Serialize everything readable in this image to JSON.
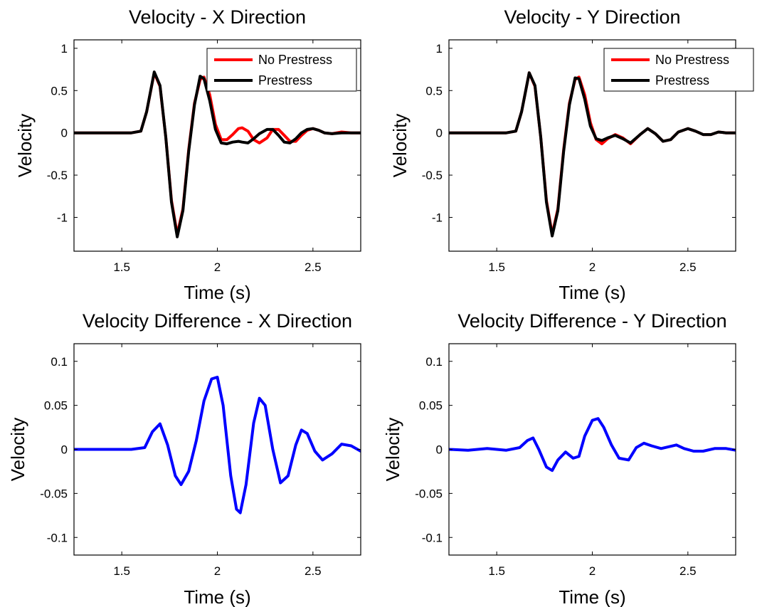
{
  "chart_data": [
    {
      "type": "line",
      "title": "Velocity - X Direction",
      "xlabel": "Time (s)",
      "ylabel": "Velocity",
      "xlim": [
        1.25,
        2.75
      ],
      "ylim": [
        -1.4,
        1.1
      ],
      "xticks": [
        "1.5",
        "2",
        "2.5"
      ],
      "yticks": [
        "1",
        "0.5",
        "0",
        "-0.5",
        "-1"
      ],
      "xtick_values": [
        1.5,
        2,
        2.5
      ],
      "ytick_values": [
        1,
        0.5,
        0,
        -0.5,
        -1
      ],
      "legend": "top-right",
      "grid": false,
      "series": [
        {
          "name": "No Prestress",
          "color": "#ff0000",
          "x": [
            1.25,
            1.4,
            1.5,
            1.55,
            1.6,
            1.63,
            1.67,
            1.7,
            1.73,
            1.76,
            1.79,
            1.82,
            1.85,
            1.88,
            1.91,
            1.93,
            1.96,
            1.99,
            2.02,
            2.05,
            2.08,
            2.11,
            2.13,
            2.16,
            2.19,
            2.22,
            2.26,
            2.29,
            2.32,
            2.35,
            2.38,
            2.41,
            2.44,
            2.47,
            2.5,
            2.53,
            2.56,
            2.6,
            2.65,
            2.7,
            2.75
          ],
          "y": [
            0,
            0,
            0,
            0,
            0.02,
            0.25,
            0.71,
            0.55,
            -0.05,
            -0.8,
            -1.2,
            -0.9,
            -0.2,
            0.35,
            0.63,
            0.66,
            0.45,
            0.1,
            -0.08,
            -0.08,
            -0.02,
            0.05,
            0.06,
            0.02,
            -0.08,
            -0.12,
            -0.06,
            0.04,
            0.04,
            -0.03,
            -0.1,
            -0.1,
            -0.03,
            0.03,
            0.05,
            0.03,
            0,
            -0.01,
            0.01,
            0,
            0
          ]
        },
        {
          "name": "Prestress",
          "color": "#000000",
          "x": [
            1.25,
            1.4,
            1.5,
            1.55,
            1.6,
            1.63,
            1.67,
            1.7,
            1.73,
            1.76,
            1.79,
            1.82,
            1.85,
            1.88,
            1.91,
            1.93,
            1.96,
            1.99,
            2.02,
            2.05,
            2.08,
            2.11,
            2.13,
            2.16,
            2.19,
            2.22,
            2.26,
            2.29,
            2.32,
            2.35,
            2.38,
            2.41,
            2.44,
            2.47,
            2.5,
            2.53,
            2.56,
            2.6,
            2.65,
            2.7,
            2.75
          ],
          "y": [
            0,
            0,
            0,
            0,
            0.02,
            0.25,
            0.72,
            0.56,
            -0.05,
            -0.82,
            -1.23,
            -0.92,
            -0.22,
            0.33,
            0.67,
            0.64,
            0.38,
            0.04,
            -0.12,
            -0.13,
            -0.11,
            -0.1,
            -0.11,
            -0.12,
            -0.07,
            -0.01,
            0.04,
            0.04,
            -0.03,
            -0.11,
            -0.12,
            -0.07,
            0,
            0.04,
            0.05,
            0.03,
            0,
            -0.01,
            0,
            0,
            0
          ]
        }
      ]
    },
    {
      "type": "line",
      "title": "Velocity - Y Direction",
      "xlabel": "Time (s)",
      "ylabel": "Velocity",
      "xlim": [
        1.25,
        2.75
      ],
      "ylim": [
        -1.4,
        1.1
      ],
      "xticks": [
        "1.5",
        "2",
        "2.5"
      ],
      "yticks": [
        "1",
        "0.5",
        "0",
        "-0.5",
        "-1"
      ],
      "xtick_values": [
        1.5,
        2,
        2.5
      ],
      "ytick_values": [
        1,
        0.5,
        0,
        -0.5,
        -1
      ],
      "legend": "top-right",
      "grid": false,
      "series": [
        {
          "name": "No Prestress",
          "color": "#ff0000",
          "x": [
            1.25,
            1.4,
            1.5,
            1.55,
            1.6,
            1.63,
            1.67,
            1.7,
            1.73,
            1.76,
            1.79,
            1.82,
            1.85,
            1.88,
            1.91,
            1.93,
            1.96,
            1.99,
            2.02,
            2.05,
            2.08,
            2.12,
            2.16,
            2.2,
            2.25,
            2.29,
            2.33,
            2.37,
            2.41,
            2.45,
            2.5,
            2.54,
            2.58,
            2.62,
            2.66,
            2.7,
            2.75
          ],
          "y": [
            0,
            0,
            0,
            0,
            0.02,
            0.25,
            0.71,
            0.55,
            -0.05,
            -0.8,
            -1.2,
            -0.9,
            -0.2,
            0.35,
            0.63,
            0.66,
            0.45,
            0.12,
            -0.08,
            -0.13,
            -0.07,
            -0.02,
            -0.06,
            -0.13,
            -0.02,
            0.05,
            -0.01,
            -0.1,
            -0.08,
            0.01,
            0.05,
            0.02,
            -0.02,
            -0.02,
            0.01,
            0,
            0
          ]
        },
        {
          "name": "Prestress",
          "color": "#000000",
          "x": [
            1.25,
            1.4,
            1.5,
            1.55,
            1.6,
            1.63,
            1.67,
            1.7,
            1.73,
            1.76,
            1.79,
            1.82,
            1.85,
            1.88,
            1.91,
            1.93,
            1.96,
            1.99,
            2.02,
            2.05,
            2.08,
            2.12,
            2.16,
            2.2,
            2.25,
            2.29,
            2.33,
            2.37,
            2.41,
            2.45,
            2.5,
            2.54,
            2.58,
            2.62,
            2.66,
            2.7,
            2.75
          ],
          "y": [
            0,
            0,
            0,
            0,
            0.02,
            0.25,
            0.71,
            0.56,
            -0.05,
            -0.82,
            -1.22,
            -0.92,
            -0.22,
            0.33,
            0.65,
            0.64,
            0.4,
            0.08,
            -0.07,
            -0.09,
            -0.06,
            -0.03,
            -0.07,
            -0.12,
            -0.02,
            0.05,
            -0.01,
            -0.1,
            -0.08,
            0.01,
            0.05,
            0.02,
            -0.02,
            -0.02,
            0.01,
            0,
            0
          ]
        }
      ]
    },
    {
      "type": "line",
      "title": "Velocity Difference - X Direction",
      "xlabel": "Time (s)",
      "ylabel": "Velocity",
      "xlim": [
        1.25,
        2.75
      ],
      "ylim": [
        -0.12,
        0.12
      ],
      "xticks": [
        "1.5",
        "2",
        "2.5"
      ],
      "yticks": [
        "0.1",
        "0.05",
        "0",
        "-0.05",
        "-0.1"
      ],
      "xtick_values": [
        1.5,
        2,
        2.5
      ],
      "ytick_values": [
        0.1,
        0.05,
        0,
        -0.05,
        -0.1
      ],
      "grid": false,
      "series": [
        {
          "color": "#0000ff",
          "x": [
            1.25,
            1.4,
            1.55,
            1.62,
            1.66,
            1.7,
            1.74,
            1.78,
            1.81,
            1.85,
            1.89,
            1.93,
            1.97,
            2.0,
            2.03,
            2.07,
            2.1,
            2.12,
            2.15,
            2.19,
            2.22,
            2.25,
            2.29,
            2.33,
            2.37,
            2.41,
            2.44,
            2.47,
            2.51,
            2.55,
            2.6,
            2.65,
            2.7,
            2.75
          ],
          "y": [
            0,
            0,
            0,
            0.002,
            0.02,
            0.029,
            0.005,
            -0.03,
            -0.04,
            -0.025,
            0.01,
            0.055,
            0.08,
            0.082,
            0.05,
            -0.03,
            -0.068,
            -0.072,
            -0.04,
            0.03,
            0.058,
            0.05,
            0.0,
            -0.038,
            -0.03,
            0.005,
            0.022,
            0.018,
            -0.002,
            -0.012,
            -0.005,
            0.006,
            0.004,
            -0.002
          ]
        }
      ]
    },
    {
      "type": "line",
      "title": "Velocity Difference - Y Direction",
      "xlabel": "Time (s)",
      "ylabel": "Velocity",
      "xlim": [
        1.25,
        2.75
      ],
      "ylim": [
        -0.12,
        0.12
      ],
      "xticks": [
        "1.5",
        "2",
        "2.5"
      ],
      "yticks": [
        "0.1",
        "0.05",
        "0",
        "-0.05",
        "-0.1"
      ],
      "xtick_values": [
        1.5,
        2,
        2.5
      ],
      "ytick_values": [
        0.1,
        0.05,
        0,
        -0.05,
        -0.1
      ],
      "grid": false,
      "series": [
        {
          "color": "#0000ff",
          "x": [
            1.25,
            1.35,
            1.45,
            1.55,
            1.62,
            1.66,
            1.69,
            1.72,
            1.76,
            1.79,
            1.82,
            1.86,
            1.9,
            1.93,
            1.96,
            2.0,
            2.03,
            2.06,
            2.1,
            2.14,
            2.19,
            2.23,
            2.27,
            2.31,
            2.36,
            2.4,
            2.44,
            2.48,
            2.53,
            2.58,
            2.64,
            2.7,
            2.75
          ],
          "y": [
            0,
            -0.001,
            0.001,
            -0.001,
            0.002,
            0.01,
            0.013,
            0.0,
            -0.02,
            -0.024,
            -0.012,
            -0.003,
            -0.01,
            -0.008,
            0.015,
            0.033,
            0.035,
            0.025,
            0.005,
            -0.01,
            -0.012,
            0.002,
            0.007,
            0.004,
            0.001,
            0.003,
            0.005,
            0.001,
            -0.002,
            -0.002,
            0.001,
            0.001,
            -0.001
          ]
        }
      ]
    }
  ]
}
